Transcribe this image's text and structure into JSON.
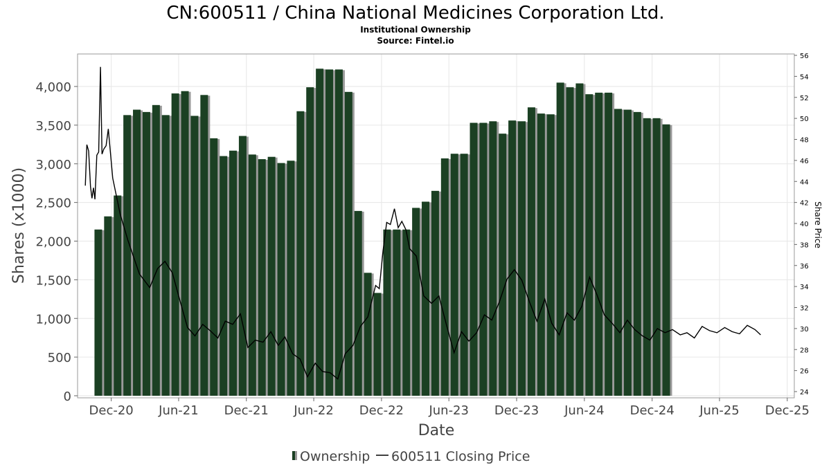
{
  "chart_data": {
    "type": "bar",
    "title": "CN:600511 / China National Medicines Corporation Ltd.",
    "subtitle_lines": [
      "Institutional Ownership",
      "Source: Fintel.io"
    ],
    "xlabel": "Date",
    "ylabel": "Shares (x1000)",
    "y2label": "Share Price",
    "ylim": [
      0,
      4500
    ],
    "y2lim": [
      23.5,
      56.2
    ],
    "xlim": [
      "2020-09-01",
      "2025-12-20"
    ],
    "x_ticks": [
      {
        "date": "2020-12-01",
        "label": "Dec-20"
      },
      {
        "date": "2021-06-01",
        "label": "Jun-21"
      },
      {
        "date": "2021-12-01",
        "label": "Dec-21"
      },
      {
        "date": "2022-06-01",
        "label": "Jun-22"
      },
      {
        "date": "2022-12-01",
        "label": "Dec-22"
      },
      {
        "date": "2023-06-01",
        "label": "Jun-23"
      },
      {
        "date": "2023-12-01",
        "label": "Dec-23"
      },
      {
        "date": "2024-06-01",
        "label": "Jun-24"
      },
      {
        "date": "2024-12-01",
        "label": "Dec-24"
      },
      {
        "date": "2025-06-01",
        "label": "Jun-25"
      },
      {
        "date": "2025-12-01",
        "label": "Dec-25"
      }
    ],
    "y_ticks": [
      {
        "value": 0,
        "label": "0"
      },
      {
        "value": 500,
        "label": "500"
      },
      {
        "value": 1000,
        "label": "1,000"
      },
      {
        "value": 1500,
        "label": "1,500"
      },
      {
        "value": 2000,
        "label": "2,000"
      },
      {
        "value": 2500,
        "label": "2,500"
      },
      {
        "value": 3000,
        "label": "3,000"
      },
      {
        "value": 3500,
        "label": "3,500"
      },
      {
        "value": 4000,
        "label": "4,000"
      }
    ],
    "y2_ticks": [
      {
        "value": 24,
        "label": "24"
      },
      {
        "value": 26,
        "label": "26"
      },
      {
        "value": 28,
        "label": "28"
      },
      {
        "value": 30,
        "label": "30"
      },
      {
        "value": 32,
        "label": "32"
      },
      {
        "value": 34,
        "label": "34"
      },
      {
        "value": 36,
        "label": "36"
      },
      {
        "value": 38,
        "label": "38"
      },
      {
        "value": 40,
        "label": "40"
      },
      {
        "value": 42,
        "label": "42"
      },
      {
        "value": 44,
        "label": "44"
      },
      {
        "value": 46,
        "label": "46"
      },
      {
        "value": 48,
        "label": "48"
      },
      {
        "value": 50,
        "label": "50"
      },
      {
        "value": 52,
        "label": "52"
      },
      {
        "value": 54,
        "label": "54"
      },
      {
        "value": 56,
        "label": "56"
      }
    ],
    "grid": true,
    "legend_position": "bottom",
    "series": [
      {
        "name": "Ownership",
        "kind": "bar",
        "color": "#1b4023",
        "shadow_color": "#9a9a9a",
        "points": [
          {
            "date": "2020-10-27",
            "value": 2150
          },
          {
            "date": "2020-11-22",
            "value": 2320
          },
          {
            "date": "2020-12-18",
            "value": 2590
          },
          {
            "date": "2021-01-13",
            "value": 3630
          },
          {
            "date": "2021-02-08",
            "value": 3700
          },
          {
            "date": "2021-03-06",
            "value": 3670
          },
          {
            "date": "2021-04-01",
            "value": 3760
          },
          {
            "date": "2021-04-27",
            "value": 3630
          },
          {
            "date": "2021-05-23",
            "value": 3910
          },
          {
            "date": "2021-06-18",
            "value": 3940
          },
          {
            "date": "2021-07-14",
            "value": 3620
          },
          {
            "date": "2021-08-09",
            "value": 3890
          },
          {
            "date": "2021-09-04",
            "value": 3330
          },
          {
            "date": "2021-09-30",
            "value": 3100
          },
          {
            "date": "2021-10-26",
            "value": 3170
          },
          {
            "date": "2021-11-21",
            "value": 3360
          },
          {
            "date": "2021-12-17",
            "value": 3120
          },
          {
            "date": "2022-01-12",
            "value": 3060
          },
          {
            "date": "2022-02-07",
            "value": 3090
          },
          {
            "date": "2022-03-05",
            "value": 3010
          },
          {
            "date": "2022-03-31",
            "value": 3040
          },
          {
            "date": "2022-04-26",
            "value": 3680
          },
          {
            "date": "2022-05-22",
            "value": 3990
          },
          {
            "date": "2022-06-17",
            "value": 4230
          },
          {
            "date": "2022-07-13",
            "value": 4220
          },
          {
            "date": "2022-08-08",
            "value": 4220
          },
          {
            "date": "2022-09-03",
            "value": 3930
          },
          {
            "date": "2022-09-29",
            "value": 2390
          },
          {
            "date": "2022-10-25",
            "value": 1590
          },
          {
            "date": "2022-11-20",
            "value": 1330
          },
          {
            "date": "2022-12-16",
            "value": 2150
          },
          {
            "date": "2023-01-11",
            "value": 2150
          },
          {
            "date": "2023-02-06",
            "value": 2150
          },
          {
            "date": "2023-03-04",
            "value": 2430
          },
          {
            "date": "2023-03-30",
            "value": 2510
          },
          {
            "date": "2023-04-25",
            "value": 2650
          },
          {
            "date": "2023-05-21",
            "value": 3070
          },
          {
            "date": "2023-06-16",
            "value": 3130
          },
          {
            "date": "2023-07-12",
            "value": 3130
          },
          {
            "date": "2023-08-07",
            "value": 3530
          },
          {
            "date": "2023-09-02",
            "value": 3530
          },
          {
            "date": "2023-09-28",
            "value": 3550
          },
          {
            "date": "2023-10-24",
            "value": 3390
          },
          {
            "date": "2023-11-19",
            "value": 3560
          },
          {
            "date": "2023-12-15",
            "value": 3550
          },
          {
            "date": "2024-01-10",
            "value": 3730
          },
          {
            "date": "2024-02-05",
            "value": 3650
          },
          {
            "date": "2024-03-02",
            "value": 3640
          },
          {
            "date": "2024-03-28",
            "value": 4050
          },
          {
            "date": "2024-04-23",
            "value": 3990
          },
          {
            "date": "2024-05-19",
            "value": 4040
          },
          {
            "date": "2024-06-14",
            "value": 3900
          },
          {
            "date": "2024-07-10",
            "value": 3920
          },
          {
            "date": "2024-08-05",
            "value": 3920
          },
          {
            "date": "2024-08-31",
            "value": 3710
          },
          {
            "date": "2024-09-26",
            "value": 3700
          },
          {
            "date": "2024-10-22",
            "value": 3670
          },
          {
            "date": "2024-11-17",
            "value": 3590
          },
          {
            "date": "2024-12-13",
            "value": 3590
          },
          {
            "date": "2025-01-08",
            "value": 3510
          }
        ]
      },
      {
        "name": "600511 Closing Price",
        "kind": "line",
        "color": "#000000",
        "points": [
          {
            "date": "2020-09-22",
            "value": 43.6
          },
          {
            "date": "2020-09-26",
            "value": 47.5
          },
          {
            "date": "2020-10-01",
            "value": 46.9
          },
          {
            "date": "2020-10-06",
            "value": 43.5
          },
          {
            "date": "2020-10-10",
            "value": 42.4
          },
          {
            "date": "2020-10-14",
            "value": 43.4
          },
          {
            "date": "2020-10-18",
            "value": 42.3
          },
          {
            "date": "2020-10-23",
            "value": 46.5
          },
          {
            "date": "2020-10-28",
            "value": 46.8
          },
          {
            "date": "2020-11-02",
            "value": 54.9
          },
          {
            "date": "2020-11-06",
            "value": 46.6
          },
          {
            "date": "2020-11-11",
            "value": 47.1
          },
          {
            "date": "2020-11-17",
            "value": 47.4
          },
          {
            "date": "2020-11-23",
            "value": 49.0
          },
          {
            "date": "2020-12-05",
            "value": 44.3
          },
          {
            "date": "2020-12-25",
            "value": 40.9
          },
          {
            "date": "2021-01-15",
            "value": 38.4
          },
          {
            "date": "2021-02-15",
            "value": 35.2
          },
          {
            "date": "2021-03-15",
            "value": 33.9
          },
          {
            "date": "2021-04-05",
            "value": 35.7
          },
          {
            "date": "2021-04-25",
            "value": 36.4
          },
          {
            "date": "2021-05-15",
            "value": 35.3
          },
          {
            "date": "2021-06-05",
            "value": 32.6
          },
          {
            "date": "2021-06-25",
            "value": 30.1
          },
          {
            "date": "2021-07-15",
            "value": 29.3
          },
          {
            "date": "2021-08-05",
            "value": 30.4
          },
          {
            "date": "2021-08-25",
            "value": 29.8
          },
          {
            "date": "2021-09-15",
            "value": 29.1
          },
          {
            "date": "2021-10-05",
            "value": 30.7
          },
          {
            "date": "2021-10-25",
            "value": 30.4
          },
          {
            "date": "2021-11-15",
            "value": 31.4
          },
          {
            "date": "2021-12-05",
            "value": 28.2
          },
          {
            "date": "2021-12-25",
            "value": 28.9
          },
          {
            "date": "2022-01-15",
            "value": 28.7
          },
          {
            "date": "2022-02-05",
            "value": 29.7
          },
          {
            "date": "2022-02-25",
            "value": 28.4
          },
          {
            "date": "2022-03-15",
            "value": 29.2
          },
          {
            "date": "2022-04-05",
            "value": 27.6
          },
          {
            "date": "2022-04-25",
            "value": 27.1
          },
          {
            "date": "2022-05-15",
            "value": 25.4
          },
          {
            "date": "2022-06-05",
            "value": 26.7
          },
          {
            "date": "2022-06-25",
            "value": 25.9
          },
          {
            "date": "2022-07-15",
            "value": 25.8
          },
          {
            "date": "2022-08-05",
            "value": 25.2
          },
          {
            "date": "2022-08-25",
            "value": 27.6
          },
          {
            "date": "2022-09-15",
            "value": 28.4
          },
          {
            "date": "2022-10-05",
            "value": 30.2
          },
          {
            "date": "2022-10-25",
            "value": 31.1
          },
          {
            "date": "2022-11-15",
            "value": 34.1
          },
          {
            "date": "2022-11-25",
            "value": 33.8
          },
          {
            "date": "2022-12-05",
            "value": 37.4
          },
          {
            "date": "2022-12-15",
            "value": 40.1
          },
          {
            "date": "2022-12-25",
            "value": 39.9
          },
          {
            "date": "2023-01-05",
            "value": 41.4
          },
          {
            "date": "2023-01-15",
            "value": 39.6
          },
          {
            "date": "2023-01-25",
            "value": 40.2
          },
          {
            "date": "2023-02-05",
            "value": 39.4
          },
          {
            "date": "2023-02-15",
            "value": 37.6
          },
          {
            "date": "2023-03-05",
            "value": 36.9
          },
          {
            "date": "2023-03-25",
            "value": 33.1
          },
          {
            "date": "2023-04-15",
            "value": 32.4
          },
          {
            "date": "2023-05-05",
            "value": 33.1
          },
          {
            "date": "2023-05-25",
            "value": 30.4
          },
          {
            "date": "2023-06-15",
            "value": 27.7
          },
          {
            "date": "2023-07-05",
            "value": 29.7
          },
          {
            "date": "2023-07-25",
            "value": 28.8
          },
          {
            "date": "2023-08-15",
            "value": 29.6
          },
          {
            "date": "2023-09-05",
            "value": 31.3
          },
          {
            "date": "2023-09-25",
            "value": 30.8
          },
          {
            "date": "2023-10-15",
            "value": 32.5
          },
          {
            "date": "2023-11-05",
            "value": 34.7
          },
          {
            "date": "2023-11-25",
            "value": 35.6
          },
          {
            "date": "2023-12-15",
            "value": 34.6
          },
          {
            "date": "2024-01-05",
            "value": 32.5
          },
          {
            "date": "2024-01-25",
            "value": 30.7
          },
          {
            "date": "2024-02-15",
            "value": 32.8
          },
          {
            "date": "2024-03-05",
            "value": 30.5
          },
          {
            "date": "2024-03-25",
            "value": 29.4
          },
          {
            "date": "2024-04-15",
            "value": 31.5
          },
          {
            "date": "2024-05-05",
            "value": 30.8
          },
          {
            "date": "2024-05-25",
            "value": 32.1
          },
          {
            "date": "2024-06-15",
            "value": 34.9
          },
          {
            "date": "2024-07-05",
            "value": 33.2
          },
          {
            "date": "2024-07-25",
            "value": 31.3
          },
          {
            "date": "2024-08-15",
            "value": 30.5
          },
          {
            "date": "2024-09-05",
            "value": 29.6
          },
          {
            "date": "2024-09-25",
            "value": 30.8
          },
          {
            "date": "2024-10-15",
            "value": 29.9
          },
          {
            "date": "2024-11-05",
            "value": 29.3
          },
          {
            "date": "2024-11-25",
            "value": 28.9
          },
          {
            "date": "2024-12-15",
            "value": 30.0
          },
          {
            "date": "2025-01-05",
            "value": 29.6
          },
          {
            "date": "2025-01-25",
            "value": 29.9
          },
          {
            "date": "2025-02-15",
            "value": 29.4
          },
          {
            "date": "2025-03-05",
            "value": 29.6
          },
          {
            "date": "2025-03-25",
            "value": 29.1
          },
          {
            "date": "2025-04-15",
            "value": 30.2
          },
          {
            "date": "2025-05-05",
            "value": 29.8
          },
          {
            "date": "2025-05-25",
            "value": 29.6
          },
          {
            "date": "2025-06-15",
            "value": 30.1
          },
          {
            "date": "2025-07-05",
            "value": 29.7
          },
          {
            "date": "2025-07-25",
            "value": 29.5
          },
          {
            "date": "2025-08-15",
            "value": 30.3
          },
          {
            "date": "2025-09-05",
            "value": 29.9
          },
          {
            "date": "2025-09-20",
            "value": 29.4
          }
        ]
      }
    ],
    "legend": [
      {
        "label": "Ownership",
        "symbol": "bar",
        "color": "#1b4023"
      },
      {
        "label": "600511 Closing Price",
        "symbol": "line",
        "color": "#000000"
      }
    ]
  }
}
